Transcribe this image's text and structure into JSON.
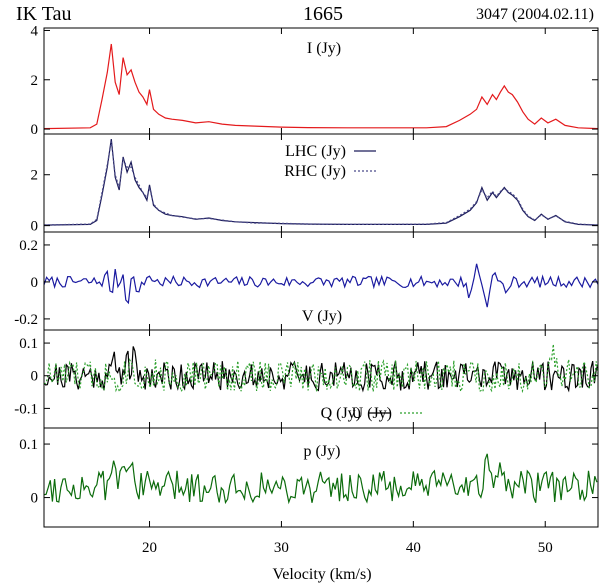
{
  "header": {
    "object": "IK Tau",
    "frequency": "1665",
    "observation": "3047 (2004.02.11)"
  },
  "colors": {
    "intensity": "#e41a1c",
    "lhc": "#1c1c5a",
    "rhc": "#4a4a8a",
    "v": "#1a1aa0",
    "q": "#000000",
    "u": "#2ca02c",
    "p": "#0b6b0b"
  },
  "chart_data": {
    "type": "line",
    "xlabel": "Velocity (km/s)",
    "xlim": [
      12,
      54
    ],
    "xticks": [
      20,
      30,
      40,
      50
    ],
    "xtick_labels": [
      "20",
      "30",
      "40",
      "50"
    ],
    "panels": [
      {
        "id": "I",
        "ylim": [
          -0.2,
          4.1
        ],
        "yticks": [
          0,
          2,
          4
        ],
        "ytick_labels": [
          "0",
          "2",
          "4"
        ],
        "legend": [
          {
            "label": "I (Jy)",
            "style": "none"
          }
        ],
        "series": [
          {
            "name": "I (Jy)",
            "color_key": "intensity",
            "dash": "",
            "points": [
              [
                12,
                0.02
              ],
              [
                15.5,
                0.05
              ],
              [
                16.0,
                0.2
              ],
              [
                16.4,
                1.2
              ],
              [
                16.8,
                2.3
              ],
              [
                17.1,
                3.45
              ],
              [
                17.4,
                1.9
              ],
              [
                17.7,
                1.4
              ],
              [
                18.0,
                2.9
              ],
              [
                18.3,
                2.2
              ],
              [
                18.6,
                2.4
              ],
              [
                18.9,
                1.9
              ],
              [
                19.2,
                1.5
              ],
              [
                19.5,
                1.3
              ],
              [
                19.8,
                1.0
              ],
              [
                20.0,
                1.6
              ],
              [
                20.3,
                0.8
              ],
              [
                20.7,
                0.6
              ],
              [
                21.2,
                0.45
              ],
              [
                21.7,
                0.4
              ],
              [
                22.5,
                0.35
              ],
              [
                23.5,
                0.25
              ],
              [
                24.5,
                0.3
              ],
              [
                25.5,
                0.2
              ],
              [
                26.5,
                0.15
              ],
              [
                28,
                0.12
              ],
              [
                30,
                0.08
              ],
              [
                32,
                0.06
              ],
              [
                35,
                0.05
              ],
              [
                38,
                0.05
              ],
              [
                41,
                0.05
              ],
              [
                42.5,
                0.1
              ],
              [
                43.5,
                0.35
              ],
              [
                44.3,
                0.6
              ],
              [
                44.8,
                0.8
              ],
              [
                45.2,
                1.3
              ],
              [
                45.6,
                1.0
              ],
              [
                46.0,
                1.4
              ],
              [
                46.3,
                1.2
              ],
              [
                46.6,
                1.5
              ],
              [
                46.9,
                1.75
              ],
              [
                47.2,
                1.5
              ],
              [
                47.5,
                1.4
              ],
              [
                47.9,
                1.1
              ],
              [
                48.3,
                0.7
              ],
              [
                48.7,
                0.4
              ],
              [
                49.2,
                0.2
              ],
              [
                49.7,
                0.45
              ],
              [
                50.2,
                0.25
              ],
              [
                50.8,
                0.4
              ],
              [
                51.5,
                0.15
              ],
              [
                52.5,
                0.05
              ],
              [
                54,
                0.02
              ]
            ]
          }
        ]
      },
      {
        "id": "LR",
        "ylim": [
          -0.25,
          3.6
        ],
        "yticks": [
          0,
          2
        ],
        "ytick_labels": [
          "0",
          "2"
        ],
        "legend": [
          {
            "label": "LHC (Jy)",
            "style": "solid"
          },
          {
            "label": "RHC (Jy)",
            "style": "dotted"
          }
        ],
        "series": [
          {
            "name": "LHC (Jy)",
            "color_key": "lhc",
            "dash": "",
            "points": [
              [
                12,
                0.02
              ],
              [
                15.5,
                0.05
              ],
              [
                16.0,
                0.2
              ],
              [
                16.4,
                1.2
              ],
              [
                16.8,
                2.3
              ],
              [
                17.1,
                3.4
              ],
              [
                17.4,
                1.9
              ],
              [
                17.7,
                1.4
              ],
              [
                18.0,
                2.7
              ],
              [
                18.3,
                2.1
              ],
              [
                18.6,
                2.5
              ],
              [
                18.9,
                1.8
              ],
              [
                19.2,
                1.5
              ],
              [
                19.5,
                1.3
              ],
              [
                19.8,
                1.0
              ],
              [
                20.0,
                1.6
              ],
              [
                20.3,
                0.8
              ],
              [
                20.7,
                0.6
              ],
              [
                21.2,
                0.45
              ],
              [
                21.7,
                0.4
              ],
              [
                22.5,
                0.35
              ],
              [
                23.5,
                0.25
              ],
              [
                24.5,
                0.3
              ],
              [
                25.5,
                0.2
              ],
              [
                26.5,
                0.15
              ],
              [
                28,
                0.12
              ],
              [
                30,
                0.08
              ],
              [
                32,
                0.06
              ],
              [
                35,
                0.05
              ],
              [
                38,
                0.05
              ],
              [
                41,
                0.05
              ],
              [
                42.5,
                0.1
              ],
              [
                43.5,
                0.35
              ],
              [
                44.3,
                0.6
              ],
              [
                44.8,
                0.9
              ],
              [
                45.2,
                1.5
              ],
              [
                45.6,
                1.0
              ],
              [
                46.0,
                1.3
              ],
              [
                46.3,
                1.1
              ],
              [
                46.6,
                1.3
              ],
              [
                46.9,
                1.5
              ],
              [
                47.2,
                1.3
              ],
              [
                47.5,
                1.2
              ],
              [
                47.9,
                1.0
              ],
              [
                48.3,
                0.6
              ],
              [
                48.7,
                0.35
              ],
              [
                49.2,
                0.2
              ],
              [
                49.7,
                0.45
              ],
              [
                50.2,
                0.25
              ],
              [
                50.8,
                0.4
              ],
              [
                51.5,
                0.15
              ],
              [
                52.5,
                0.05
              ],
              [
                54,
                0.02
              ]
            ]
          },
          {
            "name": "RHC (Jy)",
            "color_key": "rhc",
            "dash": "2,2",
            "points": [
              [
                12,
                0.03
              ],
              [
                15.5,
                0.06
              ],
              [
                16.0,
                0.25
              ],
              [
                16.4,
                1.3
              ],
              [
                16.8,
                2.4
              ],
              [
                17.1,
                3.3
              ],
              [
                17.4,
                2.0
              ],
              [
                17.7,
                1.5
              ],
              [
                18.0,
                2.6
              ],
              [
                18.3,
                2.3
              ],
              [
                18.6,
                2.3
              ],
              [
                18.9,
                1.9
              ],
              [
                19.2,
                1.6
              ],
              [
                19.5,
                1.3
              ],
              [
                19.8,
                1.1
              ],
              [
                20.0,
                1.5
              ],
              [
                20.3,
                0.85
              ],
              [
                20.7,
                0.6
              ],
              [
                21.2,
                0.5
              ],
              [
                21.7,
                0.4
              ],
              [
                22.5,
                0.33
              ],
              [
                23.5,
                0.27
              ],
              [
                24.5,
                0.28
              ],
              [
                25.5,
                0.22
              ],
              [
                26.5,
                0.15
              ],
              [
                28,
                0.1
              ],
              [
                30,
                0.09
              ],
              [
                32,
                0.07
              ],
              [
                35,
                0.05
              ],
              [
                38,
                0.05
              ],
              [
                41,
                0.06
              ],
              [
                42.5,
                0.12
              ],
              [
                43.5,
                0.4
              ],
              [
                44.3,
                0.65
              ],
              [
                44.8,
                0.95
              ],
              [
                45.2,
                1.4
              ],
              [
                45.6,
                1.1
              ],
              [
                46.0,
                1.35
              ],
              [
                46.3,
                1.15
              ],
              [
                46.6,
                1.35
              ],
              [
                46.9,
                1.45
              ],
              [
                47.2,
                1.35
              ],
              [
                47.5,
                1.25
              ],
              [
                47.9,
                1.05
              ],
              [
                48.3,
                0.65
              ],
              [
                48.7,
                0.38
              ],
              [
                49.2,
                0.22
              ],
              [
                49.7,
                0.42
              ],
              [
                50.2,
                0.27
              ],
              [
                50.8,
                0.38
              ],
              [
                51.5,
                0.17
              ],
              [
                52.5,
                0.06
              ],
              [
                54,
                0.03
              ]
            ]
          }
        ]
      },
      {
        "id": "V",
        "ylim": [
          -0.26,
          0.27
        ],
        "yticks": [
          -0.2,
          0,
          0.2
        ],
        "ytick_labels": [
          "-0.2",
          "0",
          "0.2"
        ],
        "legend": [
          {
            "label": "V (Jy)",
            "style": "none"
          }
        ],
        "series": [
          {
            "name": "V (Jy)",
            "color_key": "v",
            "dash": "",
            "noise": {
              "seed": 7,
              "amplitude": 0.03,
              "step": 0.2,
              "features": [
                [
                  16.8,
                  0.05
                ],
                [
                  17.1,
                  -0.08
                ],
                [
                  17.4,
                  0.06
                ],
                [
                  17.7,
                  -0.04
                ],
                [
                  18.0,
                  0.07
                ],
                [
                  18.3,
                  -0.13
                ],
                [
                  18.6,
                  0.03
                ],
                [
                  19.2,
                  -0.06
                ],
                [
                  20.0,
                  0.04
                ],
                [
                  44.3,
                  -0.08
                ],
                [
                  44.8,
                  0.09
                ],
                [
                  45.6,
                  -0.15
                ],
                [
                  46.0,
                  0.07
                ],
                [
                  47.0,
                  -0.06
                ]
              ]
            }
          }
        ]
      },
      {
        "id": "QU",
        "ylim": [
          -0.16,
          0.14
        ],
        "yticks": [
          -0.1,
          0,
          0.1
        ],
        "ytick_labels": [
          "-0.1",
          "0",
          "0.1"
        ],
        "legend": [
          {
            "label": "Q (Jy)",
            "style": "solid"
          },
          {
            "label": "U (Jy)",
            "style": "dotted"
          }
        ],
        "series": [
          {
            "name": "Q (Jy)",
            "color_key": "q",
            "dash": "",
            "noise": {
              "seed": 21,
              "amplitude": 0.045,
              "step": 0.13,
              "features": [
                [
                  17.3,
                  0.05
                ],
                [
                  18.2,
                  0.06
                ],
                [
                  18.8,
                  0.05
                ]
              ]
            }
          },
          {
            "name": "U (Jy)",
            "color_key": "u",
            "dash": "2,2",
            "noise": {
              "seed": 33,
              "amplitude": 0.05,
              "step": 0.13,
              "features": [
                [
                  18.5,
                  0.05
                ],
                [
                  44.3,
                  0.05
                ],
                [
                  49.5,
                  0.05
                ],
                [
                  50.5,
                  0.06
                ]
              ]
            }
          }
        ]
      },
      {
        "id": "p",
        "ylim": [
          -0.055,
          0.13
        ],
        "yticks": [
          0,
          0.1
        ],
        "ytick_labels": [
          "0",
          "0.1"
        ],
        "legend": [
          {
            "label": "p (Jy)",
            "style": "none"
          }
        ],
        "series": [
          {
            "name": "p (Jy)",
            "color_key": "p",
            "dash": "",
            "noise": {
              "seed": 55,
              "amplitude": 0.03,
              "step": 0.16,
              "offset": 0.02,
              "floor": -0.045,
              "features": [
                [
                  17.2,
                  0.04
                ],
                [
                  18.0,
                  0.05
                ],
                [
                  18.6,
                  0.07
                ],
                [
                  44.5,
                  0.04
                ],
                [
                  45.5,
                  0.04
                ],
                [
                  46.8,
                  0.05
                ]
              ]
            }
          }
        ]
      }
    ]
  }
}
